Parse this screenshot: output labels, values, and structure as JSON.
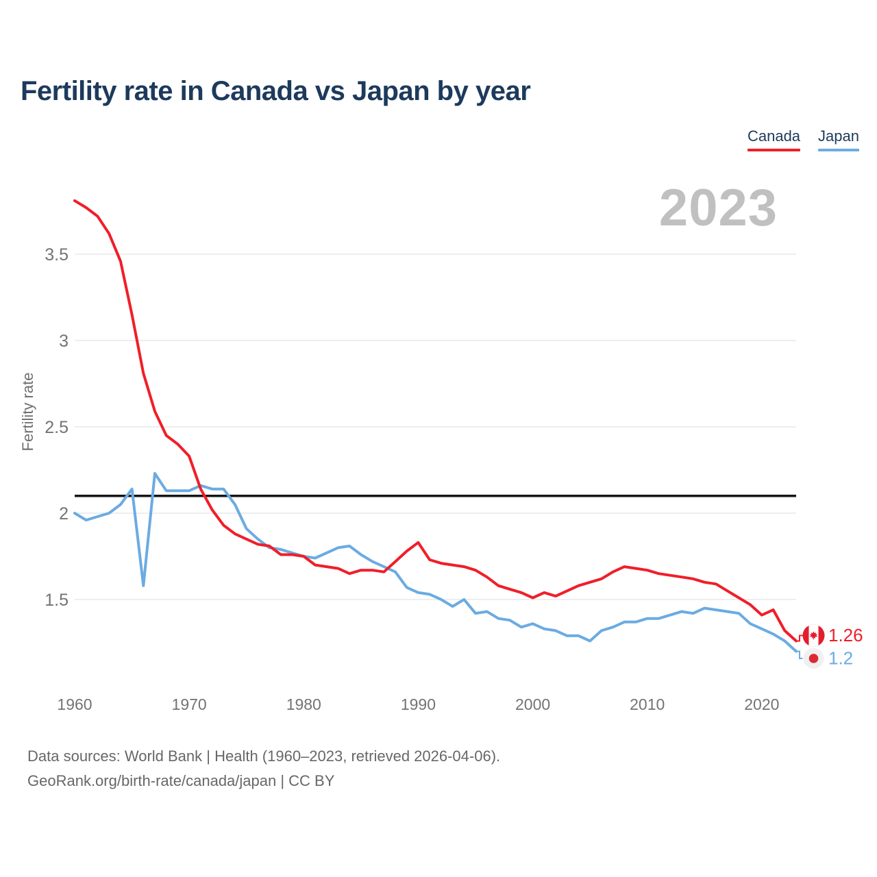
{
  "header": {
    "title": "Fertility rate in Canada vs Japan by year"
  },
  "watermark": "2023",
  "legend": [
    {
      "label": "Canada",
      "color": "#f01e28"
    },
    {
      "label": "Japan",
      "color": "#6babe2"
    }
  ],
  "chart_data": {
    "type": "line",
    "title": "Fertility rate in Canada vs Japan by year",
    "xlabel": "",
    "ylabel": "Fertility rate",
    "x_ticks": [
      1960,
      1970,
      1980,
      1990,
      2000,
      2010,
      2020
    ],
    "y_ticks": [
      "1.5",
      "2",
      "2.5",
      "3",
      "3.5"
    ],
    "xlim": [
      1960,
      2023
    ],
    "ylim": [
      1.1,
      3.9
    ],
    "grid": "horizontal",
    "legend_position": "top-right",
    "reference_line": {
      "value": 2.1,
      "color": "#161616"
    },
    "x": [
      1960,
      1961,
      1962,
      1963,
      1964,
      1965,
      1966,
      1967,
      1968,
      1969,
      1970,
      1971,
      1972,
      1973,
      1974,
      1975,
      1976,
      1977,
      1978,
      1979,
      1980,
      1981,
      1982,
      1983,
      1984,
      1985,
      1986,
      1987,
      1988,
      1989,
      1990,
      1991,
      1992,
      1993,
      1994,
      1995,
      1996,
      1997,
      1998,
      1999,
      2000,
      2001,
      2002,
      2003,
      2004,
      2005,
      2006,
      2007,
      2008,
      2009,
      2010,
      2011,
      2012,
      2013,
      2014,
      2015,
      2016,
      2017,
      2018,
      2019,
      2020,
      2021,
      2022,
      2023
    ],
    "series": [
      {
        "name": "Canada",
        "color": "#f01e28",
        "end_label": "1.26",
        "end_value": 1.26,
        "badge": {
          "flag": "canada",
          "bg": "#e51c2d",
          "stripe": "#ffffff"
        },
        "values": [
          3.81,
          3.77,
          3.72,
          3.62,
          3.46,
          3.15,
          2.81,
          2.59,
          2.45,
          2.4,
          2.33,
          2.14,
          2.02,
          1.93,
          1.88,
          1.85,
          1.82,
          1.81,
          1.76,
          1.76,
          1.75,
          1.7,
          1.69,
          1.68,
          1.65,
          1.67,
          1.67,
          1.66,
          1.72,
          1.78,
          1.83,
          1.73,
          1.71,
          1.7,
          1.69,
          1.67,
          1.63,
          1.58,
          1.56,
          1.54,
          1.51,
          1.54,
          1.52,
          1.55,
          1.58,
          1.6,
          1.62,
          1.66,
          1.69,
          1.68,
          1.67,
          1.65,
          1.64,
          1.63,
          1.62,
          1.6,
          1.59,
          1.55,
          1.51,
          1.47,
          1.41,
          1.44,
          1.32,
          1.26
        ]
      },
      {
        "name": "Japan",
        "color": "#6babe2",
        "end_label": "1.2",
        "end_value": 1.2,
        "badge": {
          "flag": "japan",
          "bg": "#f0f0f0",
          "dot": "#dc2a33"
        },
        "values": [
          2.0,
          1.96,
          1.98,
          2.0,
          2.05,
          2.14,
          1.58,
          2.23,
          2.13,
          2.13,
          2.13,
          2.16,
          2.14,
          2.14,
          2.05,
          1.91,
          1.85,
          1.8,
          1.79,
          1.77,
          1.75,
          1.74,
          1.77,
          1.8,
          1.81,
          1.76,
          1.72,
          1.69,
          1.66,
          1.57,
          1.54,
          1.53,
          1.5,
          1.46,
          1.5,
          1.42,
          1.43,
          1.39,
          1.38,
          1.34,
          1.36,
          1.33,
          1.32,
          1.29,
          1.29,
          1.26,
          1.32,
          1.34,
          1.37,
          1.37,
          1.39,
          1.39,
          1.41,
          1.43,
          1.42,
          1.45,
          1.44,
          1.43,
          1.42,
          1.36,
          1.33,
          1.3,
          1.26,
          1.2
        ]
      }
    ]
  },
  "footer": {
    "line1": "Data sources: World Bank | Health (1960–2023, retrieved 2026-04-06).",
    "line2": "GeoRank.org/birth-rate/canada/japan | CC BY"
  }
}
